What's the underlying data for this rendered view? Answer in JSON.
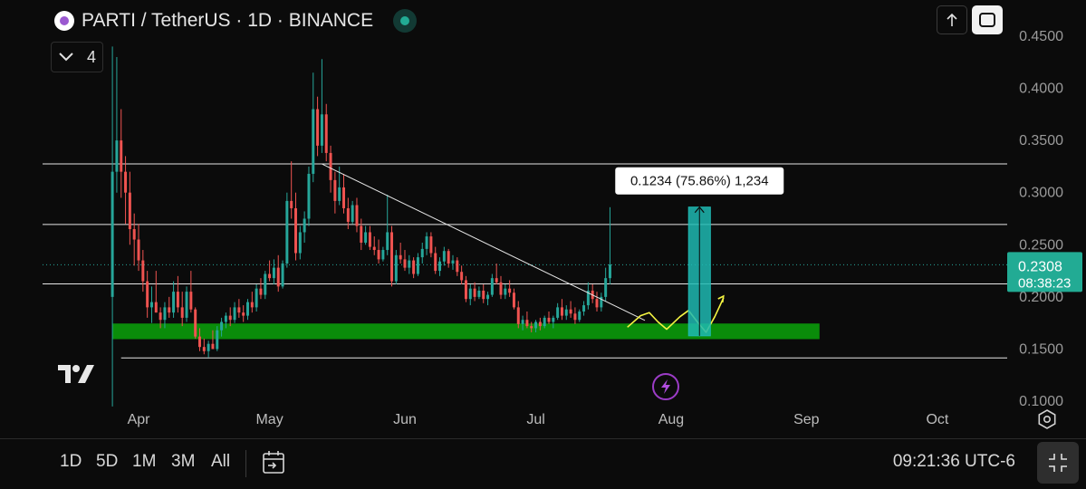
{
  "header": {
    "title": "PARTI / TetherUS · 1D · BINANCE",
    "indicator_count": "4"
  },
  "chart_data": {
    "type": "candlestick",
    "symbol": "PARTI / TetherUS",
    "interval": "1D",
    "exchange": "BINANCE",
    "y_ticks": [
      "0.4500",
      "0.4000",
      "0.3500",
      "0.3000",
      "0.2500",
      "0.2000",
      "0.1500",
      "0.1000"
    ],
    "y_tick_values": [
      0.45,
      0.4,
      0.35,
      0.3,
      0.25,
      0.2,
      0.15,
      0.1
    ],
    "ylim": [
      0.0905,
      0.4725
    ],
    "x_ticks": [
      "Apr",
      "May",
      "Jun",
      "Jul",
      "Aug",
      "Sep",
      "Oct"
    ],
    "x_tick_days": [
      6,
      36,
      67,
      97,
      128,
      159,
      189
    ],
    "xlim": [
      -16,
      205
    ],
    "last_price": "0.2308",
    "last_price_value": 0.2308,
    "countdown": "08:38:23",
    "horizontal_levels": [
      0.3275,
      0.2695,
      0.2125,
      0.1415
    ],
    "support_zone": {
      "low": 0.1595,
      "high": 0.1745,
      "start_day": 0,
      "end_day": 162
    },
    "trendline": {
      "from": [
        48,
        0.3275
      ],
      "to": [
        122,
        0.1775
      ]
    },
    "measure": {
      "label": "0.1234 (75.86%) 1,234",
      "low": 0.1627,
      "high": 0.2861,
      "start_day": 132,
      "end_day": 137
    },
    "projection_color": "#f5f542",
    "up_color": "#26a69a",
    "down_color": "#ef5350",
    "support_color": "#0a8c0a",
    "measure_color": "#1fb8b2",
    "candles": [
      [
        0.2,
        0.44,
        0.095,
        0.32
      ],
      [
        0.32,
        0.43,
        0.3,
        0.35
      ],
      [
        0.35,
        0.38,
        0.295,
        0.32
      ],
      [
        0.32,
        0.335,
        0.27,
        0.3
      ],
      [
        0.3,
        0.32,
        0.25,
        0.265
      ],
      [
        0.265,
        0.28,
        0.23,
        0.255
      ],
      [
        0.255,
        0.27,
        0.225,
        0.235
      ],
      [
        0.235,
        0.245,
        0.205,
        0.215
      ],
      [
        0.215,
        0.225,
        0.18,
        0.19
      ],
      [
        0.19,
        0.21,
        0.175,
        0.195
      ],
      [
        0.195,
        0.225,
        0.185,
        0.185
      ],
      [
        0.185,
        0.19,
        0.17,
        0.178
      ],
      [
        0.178,
        0.195,
        0.17,
        0.19
      ],
      [
        0.19,
        0.2,
        0.18,
        0.185
      ],
      [
        0.185,
        0.215,
        0.18,
        0.205
      ],
      [
        0.205,
        0.22,
        0.185,
        0.19
      ],
      [
        0.19,
        0.205,
        0.172,
        0.18
      ],
      [
        0.18,
        0.21,
        0.176,
        0.205
      ],
      [
        0.205,
        0.225,
        0.185,
        0.188
      ],
      [
        0.188,
        0.19,
        0.16,
        0.162
      ],
      [
        0.162,
        0.17,
        0.148,
        0.152
      ],
      [
        0.152,
        0.16,
        0.145,
        0.148
      ],
      [
        0.148,
        0.158,
        0.142,
        0.155
      ],
      [
        0.155,
        0.168,
        0.15,
        0.15
      ],
      [
        0.15,
        0.172,
        0.148,
        0.168
      ],
      [
        0.168,
        0.18,
        0.162,
        0.176
      ],
      [
        0.176,
        0.185,
        0.17,
        0.182
      ],
      [
        0.182,
        0.19,
        0.172,
        0.178
      ],
      [
        0.178,
        0.195,
        0.175,
        0.19
      ],
      [
        0.19,
        0.198,
        0.18,
        0.185
      ],
      [
        0.185,
        0.192,
        0.176,
        0.182
      ],
      [
        0.182,
        0.198,
        0.178,
        0.195
      ],
      [
        0.195,
        0.205,
        0.185,
        0.19
      ],
      [
        0.19,
        0.212,
        0.186,
        0.208
      ],
      [
        0.208,
        0.218,
        0.198,
        0.202
      ],
      [
        0.202,
        0.225,
        0.198,
        0.222
      ],
      [
        0.222,
        0.235,
        0.215,
        0.218
      ],
      [
        0.218,
        0.236,
        0.212,
        0.228
      ],
      [
        0.228,
        0.24,
        0.205,
        0.21
      ],
      [
        0.21,
        0.235,
        0.208,
        0.232
      ],
      [
        0.232,
        0.3,
        0.228,
        0.292
      ],
      [
        0.292,
        0.33,
        0.275,
        0.285
      ],
      [
        0.285,
        0.3,
        0.235,
        0.242
      ],
      [
        0.242,
        0.268,
        0.236,
        0.262
      ],
      [
        0.262,
        0.282,
        0.252,
        0.275
      ],
      [
        0.275,
        0.325,
        0.268,
        0.318
      ],
      [
        0.318,
        0.415,
        0.31,
        0.38
      ],
      [
        0.38,
        0.392,
        0.335,
        0.345
      ],
      [
        0.345,
        0.428,
        0.338,
        0.375
      ],
      [
        0.375,
        0.385,
        0.33,
        0.338
      ],
      [
        0.338,
        0.345,
        0.3,
        0.312
      ],
      [
        0.312,
        0.32,
        0.28,
        0.292
      ],
      [
        0.292,
        0.325,
        0.288,
        0.305
      ],
      [
        0.305,
        0.318,
        0.28,
        0.285
      ],
      [
        0.285,
        0.295,
        0.265,
        0.272
      ],
      [
        0.272,
        0.292,
        0.27,
        0.288
      ],
      [
        0.288,
        0.295,
        0.262,
        0.268
      ],
      [
        0.268,
        0.275,
        0.245,
        0.252
      ],
      [
        0.252,
        0.268,
        0.25,
        0.262
      ],
      [
        0.262,
        0.268,
        0.245,
        0.248
      ],
      [
        0.248,
        0.258,
        0.24,
        0.245
      ],
      [
        0.245,
        0.255,
        0.232,
        0.236
      ],
      [
        0.236,
        0.248,
        0.234,
        0.245
      ],
      [
        0.245,
        0.298,
        0.24,
        0.262
      ],
      [
        0.262,
        0.268,
        0.21,
        0.215
      ],
      [
        0.215,
        0.245,
        0.212,
        0.24
      ],
      [
        0.24,
        0.252,
        0.232,
        0.236
      ],
      [
        0.236,
        0.245,
        0.225,
        0.228
      ],
      [
        0.228,
        0.24,
        0.222,
        0.235
      ],
      [
        0.235,
        0.238,
        0.218,
        0.222
      ],
      [
        0.222,
        0.242,
        0.22,
        0.238
      ],
      [
        0.238,
        0.252,
        0.232,
        0.246
      ],
      [
        0.246,
        0.262,
        0.24,
        0.258
      ],
      [
        0.258,
        0.262,
        0.238,
        0.242
      ],
      [
        0.242,
        0.248,
        0.222,
        0.225
      ],
      [
        0.225,
        0.238,
        0.22,
        0.234
      ],
      [
        0.234,
        0.248,
        0.23,
        0.244
      ],
      [
        0.244,
        0.246,
        0.228,
        0.232
      ],
      [
        0.232,
        0.24,
        0.226,
        0.235
      ],
      [
        0.235,
        0.238,
        0.22,
        0.224
      ],
      [
        0.224,
        0.23,
        0.212,
        0.216
      ],
      [
        0.216,
        0.22,
        0.195,
        0.198
      ],
      [
        0.198,
        0.212,
        0.192,
        0.208
      ],
      [
        0.208,
        0.214,
        0.196,
        0.2
      ],
      [
        0.2,
        0.21,
        0.198,
        0.206
      ],
      [
        0.206,
        0.212,
        0.194,
        0.198
      ],
      [
        0.198,
        0.205,
        0.192,
        0.202
      ],
      [
        0.202,
        0.222,
        0.2,
        0.218
      ],
      [
        0.218,
        0.232,
        0.212,
        0.214
      ],
      [
        0.214,
        0.22,
        0.198,
        0.202
      ],
      [
        0.202,
        0.212,
        0.198,
        0.208
      ],
      [
        0.208,
        0.216,
        0.2,
        0.204
      ],
      [
        0.204,
        0.208,
        0.188,
        0.19
      ],
      [
        0.19,
        0.196,
        0.17,
        0.174
      ],
      [
        0.174,
        0.182,
        0.168,
        0.178
      ],
      [
        0.178,
        0.186,
        0.17,
        0.172
      ],
      [
        0.172,
        0.176,
        0.166,
        0.17
      ],
      [
        0.17,
        0.178,
        0.166,
        0.176
      ],
      [
        0.176,
        0.18,
        0.168,
        0.172
      ],
      [
        0.172,
        0.182,
        0.17,
        0.18
      ],
      [
        0.18,
        0.186,
        0.174,
        0.176
      ],
      [
        0.176,
        0.182,
        0.17,
        0.18
      ],
      [
        0.18,
        0.194,
        0.178,
        0.19
      ],
      [
        0.19,
        0.198,
        0.178,
        0.182
      ],
      [
        0.182,
        0.192,
        0.178,
        0.188
      ],
      [
        0.188,
        0.196,
        0.18,
        0.184
      ],
      [
        0.184,
        0.19,
        0.174,
        0.178
      ],
      [
        0.178,
        0.188,
        0.176,
        0.186
      ],
      [
        0.186,
        0.196,
        0.182,
        0.192
      ],
      [
        0.192,
        0.214,
        0.188,
        0.206
      ],
      [
        0.206,
        0.212,
        0.194,
        0.198
      ],
      [
        0.198,
        0.205,
        0.186,
        0.19
      ],
      [
        0.19,
        0.204,
        0.186,
        0.2
      ],
      [
        0.2,
        0.228,
        0.196,
        0.218
      ],
      [
        0.218,
        0.286,
        0.212,
        0.231
      ]
    ]
  },
  "bottom_bar": {
    "ranges": [
      "1D",
      "5D",
      "1M",
      "3M",
      "All"
    ],
    "time": "09:21:36 UTC-6"
  }
}
